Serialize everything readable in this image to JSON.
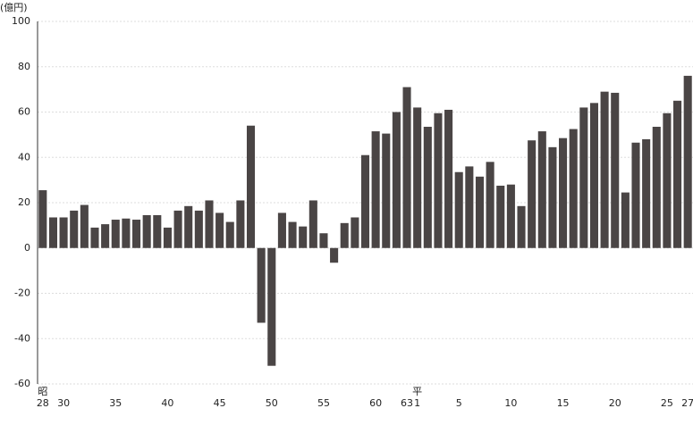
{
  "chart_data": {
    "type": "bar",
    "y_unit": "(億円)",
    "categories": [
      "28",
      null,
      "30",
      null,
      null,
      null,
      null,
      "35",
      null,
      null,
      null,
      null,
      "40",
      null,
      null,
      null,
      null,
      "45",
      null,
      null,
      null,
      null,
      "50",
      null,
      null,
      null,
      null,
      "55",
      null,
      null,
      null,
      null,
      "60",
      null,
      null,
      "63",
      "1",
      null,
      null,
      null,
      "5",
      null,
      null,
      null,
      null,
      "10",
      null,
      null,
      null,
      null,
      "15",
      null,
      null,
      null,
      null,
      "20",
      null,
      null,
      null,
      null,
      "25",
      null,
      "27"
    ],
    "eras": [
      {
        "label": "昭",
        "category_index": 0
      },
      {
        "label": "平",
        "category_index": 36
      }
    ],
    "values": [
      25.5,
      13.5,
      13.5,
      16.5,
      19,
      9,
      10.5,
      12.5,
      13,
      12.5,
      14.5,
      14.5,
      9,
      16.5,
      18.5,
      16.5,
      21,
      15.5,
      11.5,
      21,
      54,
      -33,
      -52,
      15.5,
      11.5,
      9.5,
      21,
      6.5,
      -6.5,
      11,
      13.5,
      41,
      51.5,
      50.5,
      60,
      71,
      62,
      53.5,
      59.5,
      61,
      33.5,
      36,
      31.5,
      38,
      27.5,
      28,
      18.5,
      47.5,
      51.5,
      44.5,
      48.5,
      52.5,
      62,
      64,
      69,
      68.5,
      24.5,
      46.5,
      48,
      53.5,
      59.5,
      65,
      76
    ],
    "color": "#4a4545",
    "ylim": [
      -60,
      100
    ],
    "yticks": [
      -60,
      -40,
      -20,
      0,
      20,
      40,
      60,
      80,
      100
    ],
    "grid": true
  }
}
